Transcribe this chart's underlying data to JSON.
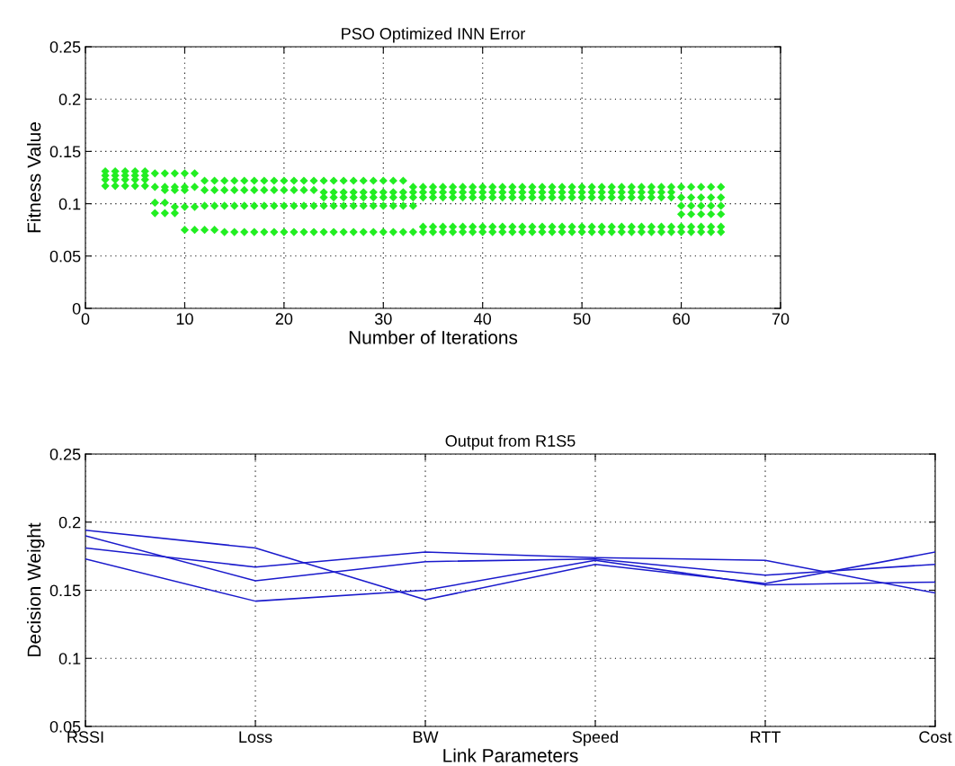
{
  "chart_data": [
    {
      "type": "scatter",
      "title": "PSO Optimized INN Error",
      "xlabel": "Number of Iterations",
      "ylabel": "Fitness Value",
      "xlim": [
        0,
        70
      ],
      "xticks": [
        0,
        10,
        20,
        30,
        40,
        50,
        60,
        70
      ],
      "ylim": [
        0,
        0.25
      ],
      "yticks": [
        0,
        0.05,
        0.1,
        0.15,
        0.2,
        0.25
      ],
      "grid": true,
      "marker": "diamond",
      "series": [
        {
          "color": "#22ee22",
          "x": [
            2,
            2,
            2,
            2,
            3,
            3,
            3,
            3,
            4,
            4,
            4,
            4,
            5,
            5,
            5,
            5,
            6,
            6,
            6,
            6,
            7,
            7,
            7,
            7,
            8,
            8,
            8,
            8,
            8,
            9,
            9,
            9,
            9,
            9,
            10,
            10,
            10,
            10,
            10,
            11,
            11,
            11,
            11,
            12,
            12,
            12,
            12,
            13,
            13,
            13,
            13,
            14,
            14,
            14,
            14,
            15,
            15,
            15,
            15,
            16,
            16,
            16,
            16,
            17,
            17,
            17,
            17,
            18,
            18,
            18,
            18,
            19,
            19,
            19,
            19,
            20,
            20,
            20,
            20,
            21,
            21,
            21,
            21,
            22,
            22,
            22,
            22,
            23,
            23,
            23,
            23,
            24,
            24,
            24,
            24,
            24,
            25,
            25,
            25,
            25,
            25,
            26,
            26,
            26,
            26,
            26,
            27,
            27,
            27,
            27,
            27,
            28,
            28,
            28,
            28,
            28,
            29,
            29,
            29,
            29,
            29,
            30,
            30,
            30,
            30,
            30,
            31,
            31,
            31,
            31,
            31,
            32,
            32,
            32,
            32,
            32,
            33,
            33,
            33,
            33,
            33,
            34,
            34,
            34,
            34,
            34,
            35,
            35,
            35,
            35,
            35,
            36,
            36,
            36,
            36,
            36,
            37,
            37,
            37,
            37,
            37,
            38,
            38,
            38,
            38,
            38,
            39,
            39,
            39,
            39,
            39,
            40,
            40,
            40,
            40,
            40,
            41,
            41,
            41,
            41,
            41,
            42,
            42,
            42,
            42,
            42,
            43,
            43,
            43,
            43,
            43,
            44,
            44,
            44,
            44,
            44,
            45,
            45,
            45,
            45,
            45,
            46,
            46,
            46,
            46,
            46,
            47,
            47,
            47,
            47,
            47,
            48,
            48,
            48,
            48,
            48,
            49,
            49,
            49,
            49,
            49,
            50,
            50,
            50,
            50,
            50,
            51,
            51,
            51,
            51,
            51,
            52,
            52,
            52,
            52,
            52,
            53,
            53,
            53,
            53,
            53,
            54,
            54,
            54,
            54,
            54,
            55,
            55,
            55,
            55,
            55,
            56,
            56,
            56,
            56,
            56,
            57,
            57,
            57,
            57,
            57,
            58,
            58,
            58,
            58,
            58,
            59,
            59,
            59,
            59,
            59,
            60,
            60,
            60,
            60,
            60,
            60,
            61,
            61,
            61,
            61,
            61,
            61,
            62,
            62,
            62,
            62,
            62,
            62,
            63,
            63,
            63,
            63,
            63,
            63,
            64,
            64,
            64,
            64,
            64,
            64
          ],
          "values": [
            0.131,
            0.127,
            0.123,
            0.117,
            0.131,
            0.127,
            0.123,
            0.117,
            0.131,
            0.127,
            0.123,
            0.117,
            0.131,
            0.127,
            0.123,
            0.117,
            0.131,
            0.127,
            0.123,
            0.117,
            0.129,
            0.116,
            0.101,
            0.091,
            0.129,
            0.116,
            0.113,
            0.101,
            0.091,
            0.129,
            0.116,
            0.113,
            0.097,
            0.091,
            0.129,
            0.116,
            0.113,
            0.097,
            0.075,
            0.129,
            0.116,
            0.097,
            0.075,
            0.122,
            0.113,
            0.098,
            0.075,
            0.122,
            0.113,
            0.098,
            0.075,
            0.122,
            0.113,
            0.098,
            0.073,
            0.122,
            0.113,
            0.098,
            0.073,
            0.122,
            0.113,
            0.098,
            0.073,
            0.122,
            0.113,
            0.098,
            0.073,
            0.122,
            0.113,
            0.098,
            0.073,
            0.122,
            0.113,
            0.098,
            0.073,
            0.122,
            0.113,
            0.098,
            0.073,
            0.122,
            0.113,
            0.098,
            0.073,
            0.122,
            0.113,
            0.098,
            0.073,
            0.122,
            0.113,
            0.098,
            0.073,
            0.122,
            0.111,
            0.106,
            0.098,
            0.073,
            0.122,
            0.111,
            0.106,
            0.098,
            0.073,
            0.122,
            0.111,
            0.106,
            0.098,
            0.073,
            0.122,
            0.111,
            0.106,
            0.098,
            0.073,
            0.122,
            0.111,
            0.106,
            0.098,
            0.073,
            0.122,
            0.111,
            0.106,
            0.098,
            0.073,
            0.122,
            0.111,
            0.106,
            0.098,
            0.073,
            0.122,
            0.111,
            0.106,
            0.098,
            0.073,
            0.122,
            0.111,
            0.106,
            0.098,
            0.073,
            0.116,
            0.111,
            0.106,
            0.098,
            0.073,
            0.116,
            0.111,
            0.106,
            0.078,
            0.073,
            0.116,
            0.111,
            0.106,
            0.078,
            0.073,
            0.116,
            0.111,
            0.106,
            0.078,
            0.073,
            0.116,
            0.111,
            0.106,
            0.078,
            0.073,
            0.116,
            0.111,
            0.106,
            0.078,
            0.073,
            0.116,
            0.111,
            0.106,
            0.078,
            0.073,
            0.116,
            0.111,
            0.106,
            0.078,
            0.073,
            0.116,
            0.111,
            0.106,
            0.078,
            0.073,
            0.116,
            0.111,
            0.106,
            0.078,
            0.073,
            0.116,
            0.111,
            0.106,
            0.078,
            0.073,
            0.116,
            0.111,
            0.106,
            0.078,
            0.073,
            0.116,
            0.111,
            0.106,
            0.078,
            0.073,
            0.116,
            0.111,
            0.106,
            0.078,
            0.073,
            0.116,
            0.111,
            0.106,
            0.078,
            0.073,
            0.116,
            0.111,
            0.106,
            0.078,
            0.073,
            0.116,
            0.111,
            0.106,
            0.078,
            0.073,
            0.116,
            0.111,
            0.106,
            0.078,
            0.073,
            0.116,
            0.111,
            0.106,
            0.078,
            0.073,
            0.116,
            0.111,
            0.106,
            0.078,
            0.073,
            0.116,
            0.111,
            0.106,
            0.078,
            0.073,
            0.116,
            0.111,
            0.106,
            0.078,
            0.073,
            0.116,
            0.111,
            0.106,
            0.078,
            0.073,
            0.116,
            0.111,
            0.106,
            0.078,
            0.073,
            0.116,
            0.111,
            0.106,
            0.078,
            0.073,
            0.116,
            0.111,
            0.106,
            0.078,
            0.073,
            0.116,
            0.111,
            0.106,
            0.078,
            0.073,
            0.116,
            0.106,
            0.098,
            0.09,
            0.078,
            0.073,
            0.116,
            0.106,
            0.098,
            0.09,
            0.078,
            0.073,
            0.116,
            0.106,
            0.098,
            0.09,
            0.078,
            0.073,
            0.116,
            0.106,
            0.098,
            0.09,
            0.078,
            0.073,
            0.116,
            0.106,
            0.098,
            0.09,
            0.078,
            0.073
          ]
        }
      ]
    },
    {
      "type": "line",
      "title": "Output from R1S5",
      "xlabel": "Link Parameters",
      "ylabel": "Decision Weight",
      "categories": [
        "RSSI",
        "Loss",
        "BW",
        "Speed",
        "RTT",
        "Cost"
      ],
      "ylim": [
        0.05,
        0.25
      ],
      "yticks": [
        0.05,
        0.1,
        0.15,
        0.2,
        0.25
      ],
      "grid": true,
      "marker": "none",
      "line_style": "solid",
      "series": [
        {
          "color": "#1a1acc",
          "values": [
            0.194,
            0.181,
            0.143,
            0.169,
            0.155,
            0.178
          ]
        },
        {
          "color": "#1a1acc",
          "values": [
            0.19,
            0.157,
            0.171,
            0.173,
            0.161,
            0.169
          ]
        },
        {
          "color": "#1a1acc",
          "values": [
            0.181,
            0.167,
            0.178,
            0.174,
            0.172,
            0.148
          ]
        },
        {
          "color": "#1a1acc",
          "values": [
            0.173,
            0.142,
            0.15,
            0.172,
            0.154,
            0.156
          ]
        }
      ]
    }
  ]
}
